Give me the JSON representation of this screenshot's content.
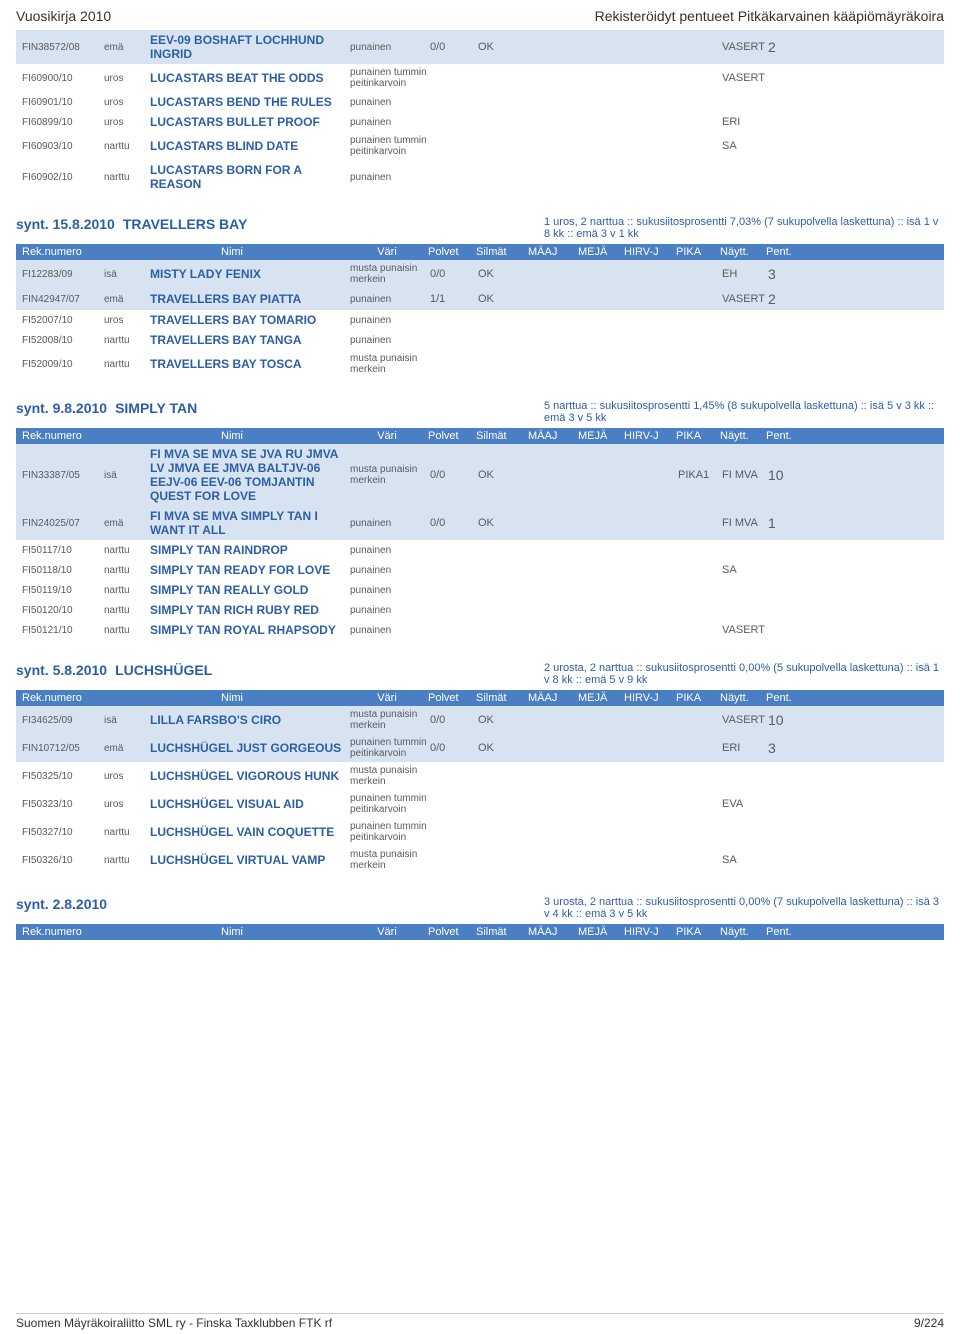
{
  "header": {
    "left": "Vuosikirja 2010",
    "right": "Rekisteröidyt pentueet Pitkäkarvainen kääpiömäyräkoira"
  },
  "columns": [
    "Rek.numero",
    "Nimi",
    "Väri",
    "Polvet",
    "Silmät",
    "MÄAJ",
    "MEJÄ",
    "HIRV-J",
    "PIKA",
    "Näytt.",
    "Pent."
  ],
  "footer": {
    "org": "Suomen Mäyräkoiraliitto SML ry - Finska Taxklubben FTK rf",
    "page": "9/224"
  },
  "sections": [
    {
      "rows": [
        {
          "hilite": true,
          "reg": "FIN38572/08",
          "role": "emä",
          "name": "EEV-09 BOSHAFT LOCHHUND INGRID",
          "color": "punainen",
          "polvet": "0/0",
          "silmat": "OK",
          "naytt": "VASERT",
          "pent": "2"
        },
        {
          "reg": "FI60900/10",
          "role": "uros",
          "name": "LUCASTARS BEAT THE ODDS",
          "color": "punainen tummin peitinkarvoin",
          "naytt": "VASERT"
        },
        {
          "reg": "FI60901/10",
          "role": "uros",
          "name": "LUCASTARS BEND THE RULES",
          "color": "punainen"
        },
        {
          "reg": "FI60899/10",
          "role": "uros",
          "name": "LUCASTARS BULLET PROOF",
          "color": "punainen",
          "naytt": "ERI"
        },
        {
          "reg": "FI60903/10",
          "role": "narttu",
          "name": "LUCASTARS BLIND DATE",
          "color": "punainen tummin peitinkarvoin",
          "naytt": "SA"
        },
        {
          "reg": "FI60902/10",
          "role": "narttu",
          "name": "LUCASTARS BORN FOR A REASON",
          "color": "punainen"
        }
      ]
    },
    {
      "header": {
        "date": "synt. 15.8.2010",
        "kennel": "TRAVELLERS BAY",
        "desc": "1 uros, 2 narttua :: sukusiitosprosentti 7,03% (7 sukupolvella laskettuna) :: isä 1 v 8 kk :: emä 3 v 1 kk"
      },
      "rows": [
        {
          "hilite": true,
          "reg": "FI12283/09",
          "role": "isä",
          "name": "MISTY LADY FENIX",
          "color": "musta punaisin merkein",
          "polvet": "0/0",
          "silmat": "OK",
          "naytt": "EH",
          "pent": "3"
        },
        {
          "hilite": true,
          "reg": "FIN42947/07",
          "role": "emä",
          "name": "TRAVELLERS BAY PIATTA",
          "color": "punainen",
          "polvet": "1/1",
          "silmat": "OK",
          "naytt": "VASERT",
          "pent": "2"
        },
        {
          "reg": "FI52007/10",
          "role": "uros",
          "name": "TRAVELLERS BAY TOMARIO",
          "color": "punainen"
        },
        {
          "reg": "FI52008/10",
          "role": "narttu",
          "name": "TRAVELLERS BAY TANGA",
          "color": "punainen"
        },
        {
          "reg": "FI52009/10",
          "role": "narttu",
          "name": "TRAVELLERS BAY TOSCA",
          "color": "musta punaisin merkein"
        }
      ]
    },
    {
      "header": {
        "date": "synt. 9.8.2010",
        "kennel": "SIMPLY TAN",
        "desc": "5 narttua :: sukusiitosprosentti 1,45% (8 sukupolvella laskettuna) :: isä 5 v 3 kk :: emä 3 v 5 kk"
      },
      "rows": [
        {
          "hilite": true,
          "reg": "FIN33387/05",
          "role": "isä",
          "name": "FI MVA SE MVA SE JVA RU JMVA LV JMVA EE JMVA BALTJV-06 EEJV-06 EEV-06 TOMJANTIN QUEST FOR LOVE",
          "color": "musta punaisin merkein",
          "polvet": "0/0",
          "silmat": "OK",
          "pika": "PIKA1",
          "naytt": "FI MVA",
          "pent": "10"
        },
        {
          "hilite": true,
          "reg": "FIN24025/07",
          "role": "emä",
          "name": "FI MVA SE MVA SIMPLY TAN I WANT IT ALL",
          "color": "punainen",
          "polvet": "0/0",
          "silmat": "OK",
          "naytt": "FI MVA",
          "pent": "1"
        },
        {
          "reg": "FI50117/10",
          "role": "narttu",
          "name": "SIMPLY TAN RAINDROP",
          "color": "punainen"
        },
        {
          "reg": "FI50118/10",
          "role": "narttu",
          "name": "SIMPLY TAN READY FOR LOVE",
          "color": "punainen",
          "naytt": "SA"
        },
        {
          "reg": "FI50119/10",
          "role": "narttu",
          "name": "SIMPLY TAN REALLY GOLD",
          "color": "punainen"
        },
        {
          "reg": "FI50120/10",
          "role": "narttu",
          "name": "SIMPLY TAN RICH RUBY RED",
          "color": "punainen"
        },
        {
          "reg": "FI50121/10",
          "role": "narttu",
          "name": "SIMPLY TAN ROYAL RHAPSODY",
          "color": "punainen",
          "naytt": "VASERT"
        }
      ]
    },
    {
      "header": {
        "date": "synt. 5.8.2010",
        "kennel": "LUCHSHÜGEL",
        "desc": "2 urosta, 2 narttua :: sukusiitosprosentti 0,00% (5 sukupolvella laskettuna) :: isä 1 v 8 kk :: emä 5 v 9 kk"
      },
      "rows": [
        {
          "hilite": true,
          "reg": "FI34625/09",
          "role": "isä",
          "name": "LILLA FARSBO'S CIRO",
          "color": "musta punaisin merkein",
          "polvet": "0/0",
          "silmat": "OK",
          "naytt": "VASERT",
          "pent": "10"
        },
        {
          "hilite": true,
          "reg": "FIN10712/05",
          "role": "emä",
          "name": "LUCHSHÜGEL JUST GORGEOUS",
          "color": "punainen tummin peitinkarvoin",
          "polvet": "0/0",
          "silmat": "OK",
          "naytt": "ERI",
          "pent": "3"
        },
        {
          "reg": "FI50325/10",
          "role": "uros",
          "name": "LUCHSHÜGEL VIGOROUS HUNK",
          "color": "musta punaisin merkein"
        },
        {
          "reg": "FI50323/10",
          "role": "uros",
          "name": "LUCHSHÜGEL VISUAL AID",
          "color": "punainen tummin peitinkarvoin",
          "naytt": "EVA"
        },
        {
          "reg": "FI50327/10",
          "role": "narttu",
          "name": "LUCHSHÜGEL VAIN COQUETTE",
          "color": "punainen tummin peitinkarvoin"
        },
        {
          "reg": "FI50326/10",
          "role": "narttu",
          "name": "LUCHSHÜGEL VIRTUAL VAMP",
          "color": "musta punaisin merkein",
          "naytt": "SA"
        }
      ]
    },
    {
      "header": {
        "date": "synt. 2.8.2010",
        "kennel": "",
        "desc": "3 urosta, 2 narttua :: sukusiitosprosentti 0,00% (7 sukupolvella laskettuna) :: isä 3 v 4 kk :: emä 3 v 5 kk"
      },
      "rows": []
    }
  ]
}
